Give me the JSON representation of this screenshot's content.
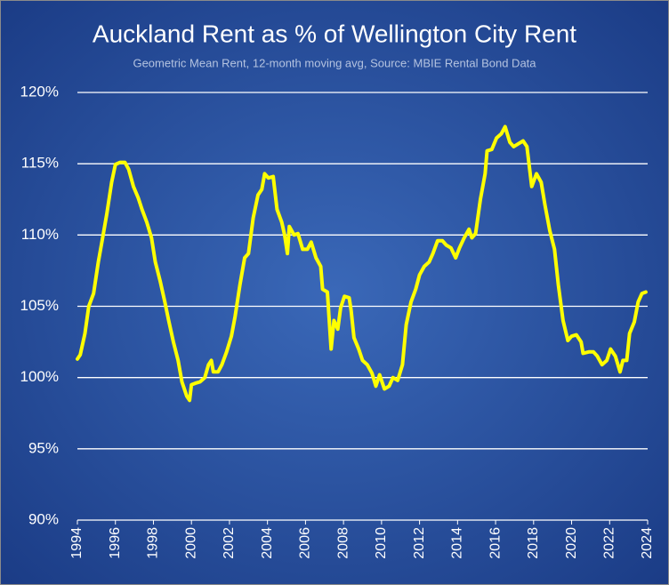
{
  "chart_data": {
    "type": "line",
    "title": "Auckland Rent as % of Wellington City Rent",
    "subtitle": "Geometric Mean Rent, 12-month moving avg, Source: MBIE Rental Bond Data",
    "x": [
      1994.0,
      1994.15,
      1994.4,
      1994.6,
      1994.85,
      1995.1,
      1995.3,
      1995.55,
      1995.8,
      1996.0,
      1996.25,
      1996.5,
      1996.7,
      1996.95,
      1997.2,
      1997.4,
      1997.65,
      1997.9,
      1998.1,
      1998.35,
      1998.6,
      1998.8,
      1999.05,
      1999.3,
      1999.5,
      1999.75,
      1999.9,
      2000.0,
      2000.2,
      2000.45,
      2000.7,
      2000.9,
      2001.05,
      2001.15,
      2001.4,
      2001.6,
      2001.85,
      2002.1,
      2002.3,
      2002.55,
      2002.8,
      2003.0,
      2003.25,
      2003.5,
      2003.7,
      2003.85,
      2004.05,
      2004.3,
      2004.5,
      2004.75,
      2004.9,
      2005.05,
      2005.15,
      2005.4,
      2005.6,
      2005.85,
      2006.1,
      2006.3,
      2006.55,
      2006.8,
      2006.9,
      2007.15,
      2007.35,
      2007.5,
      2007.7,
      2007.85,
      2008.05,
      2008.3,
      2008.4,
      2008.55,
      2008.8,
      2009.0,
      2009.25,
      2009.5,
      2009.7,
      2009.9,
      2010.15,
      2010.4,
      2010.6,
      2010.85,
      2011.1,
      2011.3,
      2011.55,
      2011.8,
      2012.0,
      2012.25,
      2012.5,
      2012.7,
      2012.95,
      2013.2,
      2013.4,
      2013.65,
      2013.9,
      2014.1,
      2014.35,
      2014.6,
      2014.75,
      2014.95,
      2015.2,
      2015.45,
      2015.55,
      2015.8,
      2016.05,
      2016.3,
      2016.5,
      2016.75,
      2016.95,
      2017.2,
      2017.45,
      2017.65,
      2017.9,
      2018.15,
      2018.4,
      2018.6,
      2018.85,
      2019.1,
      2019.3,
      2019.55,
      2019.8,
      2020.0,
      2020.25,
      2020.5,
      2020.6,
      2020.9,
      2021.15,
      2021.35,
      2021.6,
      2021.85,
      2022.05,
      2022.3,
      2022.55,
      2022.7,
      2022.9,
      2023.05,
      2023.3,
      2023.5,
      2023.7,
      2023.9
    ],
    "series": [
      {
        "color": "#ffff00",
        "values": [
          101.3,
          101.6,
          103.1,
          105.0,
          105.9,
          108.1,
          109.6,
          111.5,
          113.7,
          114.95,
          115.1,
          115.1,
          114.6,
          113.4,
          112.6,
          111.8,
          110.9,
          109.8,
          108.1,
          106.8,
          105.3,
          104.0,
          102.5,
          101.2,
          99.7,
          98.7,
          98.4,
          99.5,
          99.6,
          99.7,
          100.0,
          100.9,
          101.2,
          100.4,
          100.4,
          100.9,
          101.8,
          102.9,
          104.3,
          106.5,
          108.4,
          108.7,
          111.2,
          112.8,
          113.2,
          114.3,
          114.0,
          114.1,
          111.8,
          110.9,
          110.0,
          108.7,
          110.6,
          110.0,
          110.1,
          109.0,
          109.0,
          109.5,
          108.4,
          107.8,
          106.2,
          106.0,
          102.0,
          104.0,
          103.4,
          104.9,
          105.7,
          105.6,
          104.7,
          102.8,
          102.0,
          101.2,
          100.9,
          100.3,
          99.4,
          100.2,
          99.2,
          99.4,
          100.0,
          99.8,
          100.9,
          103.7,
          105.3,
          106.2,
          107.2,
          107.8,
          108.1,
          108.7,
          109.6,
          109.6,
          109.3,
          109.1,
          108.4,
          109.1,
          109.8,
          110.4,
          109.8,
          110.1,
          112.5,
          114.3,
          115.9,
          116.0,
          116.8,
          117.1,
          117.6,
          116.5,
          116.2,
          116.4,
          116.6,
          116.2,
          113.4,
          114.3,
          113.7,
          112.1,
          110.3,
          109.0,
          106.5,
          104.0,
          102.6,
          102.9,
          103.0,
          102.5,
          101.7,
          101.8,
          101.8,
          101.5,
          100.9,
          101.2,
          102.0,
          101.5,
          100.4,
          101.2,
          101.2,
          103.1,
          103.9,
          105.3,
          105.9,
          106.0
        ]
      }
    ],
    "xlim": [
      1994,
      2024
    ],
    "xticks": [
      1994,
      1996,
      1998,
      2000,
      2002,
      2004,
      2006,
      2008,
      2010,
      2012,
      2014,
      2016,
      2018,
      2020,
      2022,
      2024
    ],
    "ylim": [
      90,
      120
    ],
    "yticks": [
      {
        "value": 90,
        "label": "90%"
      },
      {
        "value": 95,
        "label": "95%"
      },
      {
        "value": 100,
        "label": "100%"
      },
      {
        "value": 105,
        "label": "105%"
      },
      {
        "value": 110,
        "label": "110%"
      },
      {
        "value": 115,
        "label": "115%"
      },
      {
        "value": 120,
        "label": "120%"
      }
    ],
    "grid": true
  }
}
